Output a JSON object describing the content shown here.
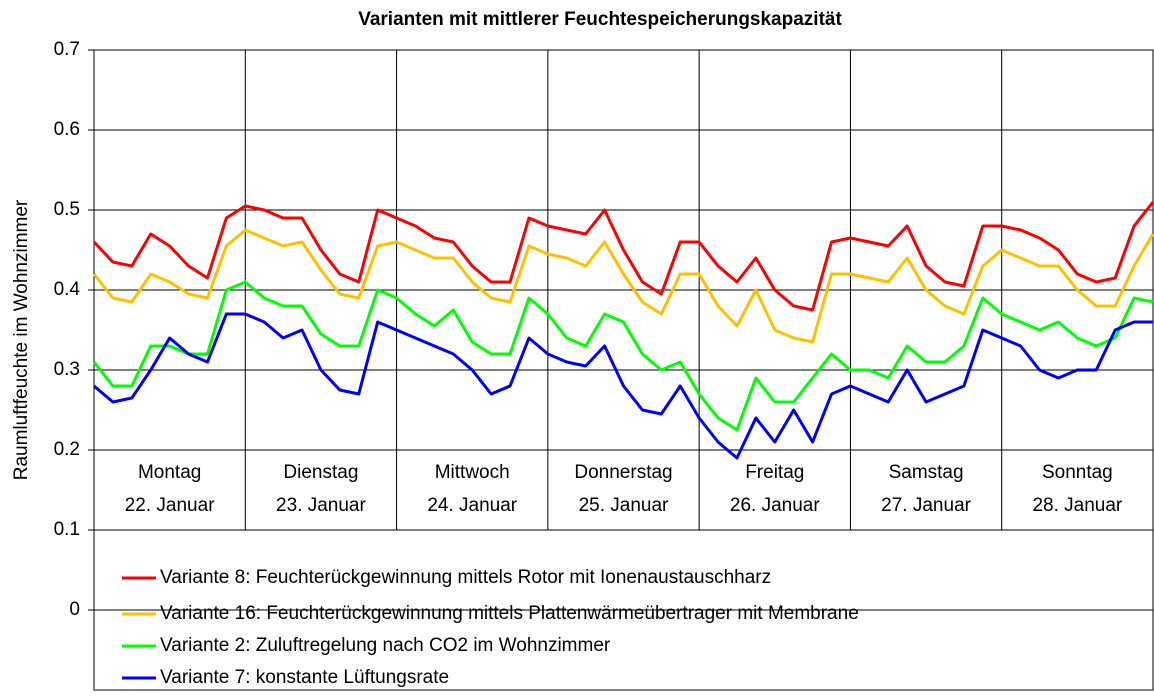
{
  "chart_data": {
    "type": "line",
    "title": "Varianten mit mittlerer Feuchtespeicherungskapazität",
    "y_label": "Raumluftfeuchte im Wohnzimmer",
    "days": [
      {
        "weekday": "Montag",
        "date": "22. Januar"
      },
      {
        "weekday": "Dienstag",
        "date": "23. Januar"
      },
      {
        "weekday": "Mittwoch",
        "date": "24. Januar"
      },
      {
        "weekday": "Donnerstag",
        "date": "25. Januar"
      },
      {
        "weekday": "Freitag",
        "date": "26. Januar"
      },
      {
        "weekday": "Samstag",
        "date": "27. Januar"
      },
      {
        "weekday": "Sonntag",
        "date": "28. Januar"
      }
    ],
    "xlim": [
      0,
      168
    ],
    "x": [
      0,
      3,
      6,
      9,
      12,
      15,
      18,
      21,
      24,
      27,
      30,
      33,
      36,
      39,
      42,
      45,
      48,
      51,
      54,
      57,
      60,
      63,
      66,
      69,
      72,
      75,
      78,
      81,
      84,
      87,
      90,
      93,
      96,
      99,
      102,
      105,
      108,
      111,
      114,
      117,
      120,
      123,
      126,
      129,
      132,
      135,
      138,
      141,
      144,
      147,
      150,
      153,
      156,
      159,
      162,
      165,
      168
    ],
    "ylim": [
      -0.1,
      0.7
    ],
    "yticks": [
      0,
      0.1,
      0.2,
      0.3,
      0.4,
      0.5,
      0.6,
      0.7
    ],
    "grid": true,
    "series": [
      {
        "name": "Variante 8: Feuchterückgewinnung mittels Rotor mit Ionenaustauschharz",
        "color": "#ff0000",
        "values": [
          0.46,
          0.435,
          0.43,
          0.47,
          0.455,
          0.43,
          0.415,
          0.49,
          0.505,
          0.5,
          0.49,
          0.49,
          0.45,
          0.42,
          0.41,
          0.5,
          0.49,
          0.48,
          0.465,
          0.46,
          0.43,
          0.41,
          0.41,
          0.49,
          0.48,
          0.475,
          0.47,
          0.5,
          0.45,
          0.41,
          0.395,
          0.46,
          0.46,
          0.43,
          0.41,
          0.44,
          0.4,
          0.38,
          0.375,
          0.46,
          0.465,
          0.46,
          0.455,
          0.48,
          0.43,
          0.41,
          0.405,
          0.48,
          0.48,
          0.475,
          0.465,
          0.45,
          0.42,
          0.41,
          0.415,
          0.48,
          0.51
        ]
      },
      {
        "name": "Variante 16: Feuchterückgewinnung mittels Plattenwärmeübertrager mit Membrane",
        "color": "#ffc000",
        "values": [
          0.42,
          0.39,
          0.385,
          0.42,
          0.41,
          0.395,
          0.39,
          0.455,
          0.475,
          0.465,
          0.455,
          0.46,
          0.425,
          0.395,
          0.39,
          0.455,
          0.46,
          0.45,
          0.44,
          0.44,
          0.41,
          0.39,
          0.385,
          0.455,
          0.445,
          0.44,
          0.43,
          0.46,
          0.42,
          0.385,
          0.37,
          0.42,
          0.42,
          0.38,
          0.355,
          0.4,
          0.35,
          0.34,
          0.335,
          0.42,
          0.42,
          0.415,
          0.41,
          0.44,
          0.4,
          0.38,
          0.37,
          0.43,
          0.45,
          0.44,
          0.43,
          0.43,
          0.4,
          0.38,
          0.38,
          0.43,
          0.47
        ]
      },
      {
        "name": "Variante 2: Zuluftregelung nach CO2 im Wohnzimmer",
        "color": "#00ff00",
        "values": [
          0.31,
          0.28,
          0.28,
          0.33,
          0.33,
          0.32,
          0.32,
          0.4,
          0.41,
          0.39,
          0.38,
          0.38,
          0.345,
          0.33,
          0.33,
          0.4,
          0.39,
          0.37,
          0.355,
          0.375,
          0.335,
          0.32,
          0.32,
          0.39,
          0.37,
          0.34,
          0.33,
          0.37,
          0.36,
          0.32,
          0.3,
          0.31,
          0.27,
          0.24,
          0.225,
          0.29,
          0.26,
          0.26,
          0.29,
          0.32,
          0.3,
          0.3,
          0.29,
          0.33,
          0.31,
          0.31,
          0.33,
          0.39,
          0.37,
          0.36,
          0.35,
          0.36,
          0.34,
          0.33,
          0.34,
          0.39,
          0.385
        ]
      },
      {
        "name": "Variante 7: konstante Lüftungsrate",
        "color": "#0000ff",
        "values": [
          0.28,
          0.26,
          0.265,
          0.3,
          0.34,
          0.32,
          0.31,
          0.37,
          0.37,
          0.36,
          0.34,
          0.35,
          0.3,
          0.275,
          0.27,
          0.36,
          0.35,
          0.34,
          0.33,
          0.32,
          0.3,
          0.27,
          0.28,
          0.34,
          0.32,
          0.31,
          0.305,
          0.33,
          0.28,
          0.25,
          0.245,
          0.28,
          0.24,
          0.21,
          0.19,
          0.24,
          0.21,
          0.25,
          0.21,
          0.27,
          0.28,
          0.27,
          0.26,
          0.3,
          0.26,
          0.27,
          0.28,
          0.35,
          0.34,
          0.33,
          0.3,
          0.29,
          0.3,
          0.3,
          0.35,
          0.36,
          0.36
        ]
      }
    ]
  }
}
